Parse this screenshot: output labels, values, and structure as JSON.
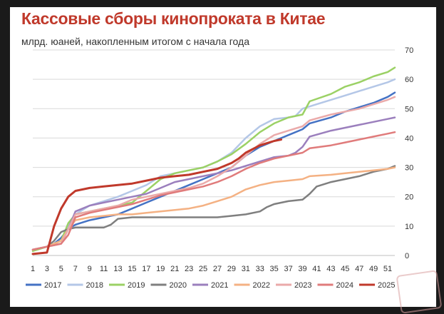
{
  "title": "Кассовые сборы кинопроката в Китае",
  "subtitle": "млрд. юаней, накопленным итогом с начала года",
  "chart_data": {
    "type": "line",
    "title": "Кассовые сборы кинопроката в Китае",
    "subtitle": "млрд. юаней, накопленным итогом с начала года",
    "xlabel": "",
    "ylabel": "",
    "x_ticks": [
      1,
      3,
      5,
      7,
      9,
      11,
      13,
      15,
      17,
      19,
      21,
      23,
      25,
      27,
      29,
      31,
      33,
      35,
      37,
      39,
      41,
      43,
      45,
      47,
      49,
      51
    ],
    "xlim": [
      1,
      52
    ],
    "y_ticks": [
      0,
      10,
      20,
      30,
      40,
      50,
      60,
      70
    ],
    "ylim": [
      0,
      70
    ],
    "y_axis_side": "right",
    "grid": "horizontal",
    "legend": "bottom",
    "series": [
      {
        "name": "2017",
        "color": "#4472c4",
        "points": [
          [
            1,
            2
          ],
          [
            3,
            3
          ],
          [
            4,
            4
          ],
          [
            5,
            6
          ],
          [
            6,
            9
          ],
          [
            7,
            10.5
          ],
          [
            9,
            12
          ],
          [
            11,
            13
          ],
          [
            13,
            14
          ],
          [
            15,
            16
          ],
          [
            17,
            18
          ],
          [
            19,
            20
          ],
          [
            21,
            22
          ],
          [
            23,
            24
          ],
          [
            25,
            26
          ],
          [
            27,
            28
          ],
          [
            29,
            30
          ],
          [
            30,
            32
          ],
          [
            31,
            34
          ],
          [
            33,
            37
          ],
          [
            35,
            39
          ],
          [
            37,
            41
          ],
          [
            39,
            43
          ],
          [
            40,
            45
          ],
          [
            43,
            47
          ],
          [
            45,
            49
          ],
          [
            47,
            50.5
          ],
          [
            49,
            52
          ],
          [
            51,
            54
          ],
          [
            52,
            55.5
          ]
        ]
      },
      {
        "name": "2018",
        "color": "#b4c7e7",
        "points": [
          [
            1,
            2
          ],
          [
            3,
            3
          ],
          [
            5,
            5
          ],
          [
            6,
            10
          ],
          [
            7,
            14
          ],
          [
            9,
            17
          ],
          [
            11,
            18.5
          ],
          [
            13,
            20
          ],
          [
            15,
            22
          ],
          [
            17,
            24
          ],
          [
            19,
            27
          ],
          [
            21,
            28
          ],
          [
            23,
            29
          ],
          [
            25,
            30
          ],
          [
            27,
            32
          ],
          [
            29,
            35
          ],
          [
            31,
            40
          ],
          [
            33,
            44
          ],
          [
            35,
            46.5
          ],
          [
            37,
            47
          ],
          [
            38,
            47.5
          ],
          [
            39,
            50
          ],
          [
            41,
            51.5
          ],
          [
            43,
            53
          ],
          [
            45,
            54.5
          ],
          [
            47,
            56
          ],
          [
            49,
            57.5
          ],
          [
            51,
            59
          ],
          [
            52,
            60
          ]
        ]
      },
      {
        "name": "2019",
        "color": "#9bd165",
        "points": [
          [
            1,
            1.5
          ],
          [
            3,
            3
          ],
          [
            5,
            5
          ],
          [
            6,
            11
          ],
          [
            7,
            14
          ],
          [
            9,
            15
          ],
          [
            11,
            16
          ],
          [
            13,
            17
          ],
          [
            15,
            18
          ],
          [
            17,
            22
          ],
          [
            19,
            26
          ],
          [
            21,
            28
          ],
          [
            23,
            29
          ],
          [
            25,
            30
          ],
          [
            27,
            32
          ],
          [
            29,
            34.5
          ],
          [
            31,
            38
          ],
          [
            33,
            42
          ],
          [
            35,
            45
          ],
          [
            37,
            47
          ],
          [
            39,
            48
          ],
          [
            40,
            52.5
          ],
          [
            43,
            55
          ],
          [
            45,
            57.5
          ],
          [
            47,
            59
          ],
          [
            49,
            61
          ],
          [
            51,
            62.5
          ],
          [
            52,
            64
          ]
        ]
      },
      {
        "name": "2020",
        "color": "#7f7f7f",
        "points": [
          [
            1,
            2
          ],
          [
            3,
            3
          ],
          [
            4,
            5
          ],
          [
            5,
            8
          ],
          [
            6,
            9
          ],
          [
            7,
            9.5
          ],
          [
            9,
            9.5
          ],
          [
            11,
            9.5
          ],
          [
            12,
            10.5
          ],
          [
            13,
            12.5
          ],
          [
            15,
            13
          ],
          [
            17,
            13
          ],
          [
            19,
            13
          ],
          [
            21,
            13
          ],
          [
            23,
            13
          ],
          [
            25,
            13
          ],
          [
            27,
            13
          ],
          [
            29,
            13.5
          ],
          [
            31,
            14
          ],
          [
            33,
            15
          ],
          [
            34,
            16.5
          ],
          [
            35,
            17.5
          ],
          [
            37,
            18.5
          ],
          [
            39,
            19
          ],
          [
            40,
            21
          ],
          [
            41,
            23.5
          ],
          [
            43,
            25
          ],
          [
            45,
            26
          ],
          [
            47,
            27
          ],
          [
            49,
            28.5
          ],
          [
            51,
            29.5
          ],
          [
            52,
            30.5
          ]
        ]
      },
      {
        "name": "2021",
        "color": "#9b7fbd",
        "points": [
          [
            1,
            2
          ],
          [
            3,
            3
          ],
          [
            5,
            4
          ],
          [
            6,
            9
          ],
          [
            7,
            15
          ],
          [
            9,
            17
          ],
          [
            11,
            18
          ],
          [
            13,
            19
          ],
          [
            15,
            20
          ],
          [
            17,
            21
          ],
          [
            19,
            23
          ],
          [
            21,
            25
          ],
          [
            23,
            26
          ],
          [
            25,
            27
          ],
          [
            27,
            28
          ],
          [
            29,
            29
          ],
          [
            31,
            30.5
          ],
          [
            33,
            32
          ],
          [
            35,
            33.5
          ],
          [
            37,
            34
          ],
          [
            38,
            35
          ],
          [
            39,
            37
          ],
          [
            40,
            40.5
          ],
          [
            43,
            42.5
          ],
          [
            45,
            43.5
          ],
          [
            47,
            44.5
          ],
          [
            49,
            45.5
          ],
          [
            51,
            46.5
          ],
          [
            52,
            47
          ]
        ]
      },
      {
        "name": "2022",
        "color": "#f4b183",
        "points": [
          [
            1,
            2
          ],
          [
            3,
            3
          ],
          [
            5,
            5
          ],
          [
            6,
            9
          ],
          [
            7,
            12
          ],
          [
            9,
            13
          ],
          [
            11,
            13.5
          ],
          [
            13,
            14
          ],
          [
            15,
            14
          ],
          [
            17,
            14.5
          ],
          [
            19,
            15
          ],
          [
            21,
            15.5
          ],
          [
            23,
            16
          ],
          [
            25,
            17
          ],
          [
            27,
            18.5
          ],
          [
            29,
            20
          ],
          [
            31,
            22.5
          ],
          [
            33,
            24
          ],
          [
            35,
            25
          ],
          [
            37,
            25.5
          ],
          [
            39,
            26
          ],
          [
            40,
            27
          ],
          [
            43,
            27.5
          ],
          [
            45,
            28
          ],
          [
            47,
            28.5
          ],
          [
            49,
            29
          ],
          [
            51,
            29.5
          ],
          [
            52,
            30
          ]
        ]
      },
      {
        "name": "2023",
        "color": "#eaaaaa",
        "points": [
          [
            1,
            2
          ],
          [
            3,
            3
          ],
          [
            5,
            4
          ],
          [
            6,
            9
          ],
          [
            7,
            14
          ],
          [
            9,
            15
          ],
          [
            11,
            16
          ],
          [
            13,
            17
          ],
          [
            15,
            19
          ],
          [
            17,
            20
          ],
          [
            19,
            21
          ],
          [
            21,
            22
          ],
          [
            23,
            23
          ],
          [
            25,
            24.5
          ],
          [
            27,
            27
          ],
          [
            29,
            30
          ],
          [
            31,
            34
          ],
          [
            33,
            38
          ],
          [
            35,
            41
          ],
          [
            37,
            42.5
          ],
          [
            39,
            44
          ],
          [
            40,
            46
          ],
          [
            43,
            48
          ],
          [
            45,
            49
          ],
          [
            47,
            50
          ],
          [
            49,
            51.5
          ],
          [
            51,
            53
          ],
          [
            52,
            54
          ]
        ]
      },
      {
        "name": "2024",
        "color": "#e07b7b",
        "points": [
          [
            1,
            2
          ],
          [
            3,
            3
          ],
          [
            5,
            4
          ],
          [
            6,
            7
          ],
          [
            7,
            13
          ],
          [
            9,
            14.5
          ],
          [
            11,
            15.5
          ],
          [
            13,
            16.5
          ],
          [
            15,
            17.5
          ],
          [
            17,
            19
          ],
          [
            19,
            20.5
          ],
          [
            21,
            21.5
          ],
          [
            23,
            22.5
          ],
          [
            25,
            23.5
          ],
          [
            27,
            25
          ],
          [
            29,
            27
          ],
          [
            31,
            29.5
          ],
          [
            33,
            31.5
          ],
          [
            35,
            33
          ],
          [
            37,
            34
          ],
          [
            39,
            35
          ],
          [
            40,
            36.5
          ],
          [
            43,
            37.5
          ],
          [
            45,
            38.5
          ],
          [
            47,
            39.5
          ],
          [
            49,
            40.5
          ],
          [
            51,
            41.5
          ],
          [
            52,
            42
          ]
        ]
      },
      {
        "name": "2025",
        "color": "#c0392b",
        "points": [
          [
            1,
            0.5
          ],
          [
            3,
            1
          ],
          [
            4,
            10
          ],
          [
            5,
            16
          ],
          [
            6,
            20
          ],
          [
            7,
            22
          ],
          [
            9,
            23
          ],
          [
            11,
            23.5
          ],
          [
            13,
            24
          ],
          [
            15,
            24.5
          ],
          [
            17,
            25.5
          ],
          [
            19,
            26.5
          ],
          [
            21,
            27
          ],
          [
            23,
            27.5
          ],
          [
            25,
            28.5
          ],
          [
            27,
            29.5
          ],
          [
            29,
            31.5
          ],
          [
            30,
            33
          ],
          [
            31,
            35
          ],
          [
            33,
            37.5
          ],
          [
            35,
            39
          ],
          [
            36,
            39.5
          ]
        ]
      }
    ]
  }
}
